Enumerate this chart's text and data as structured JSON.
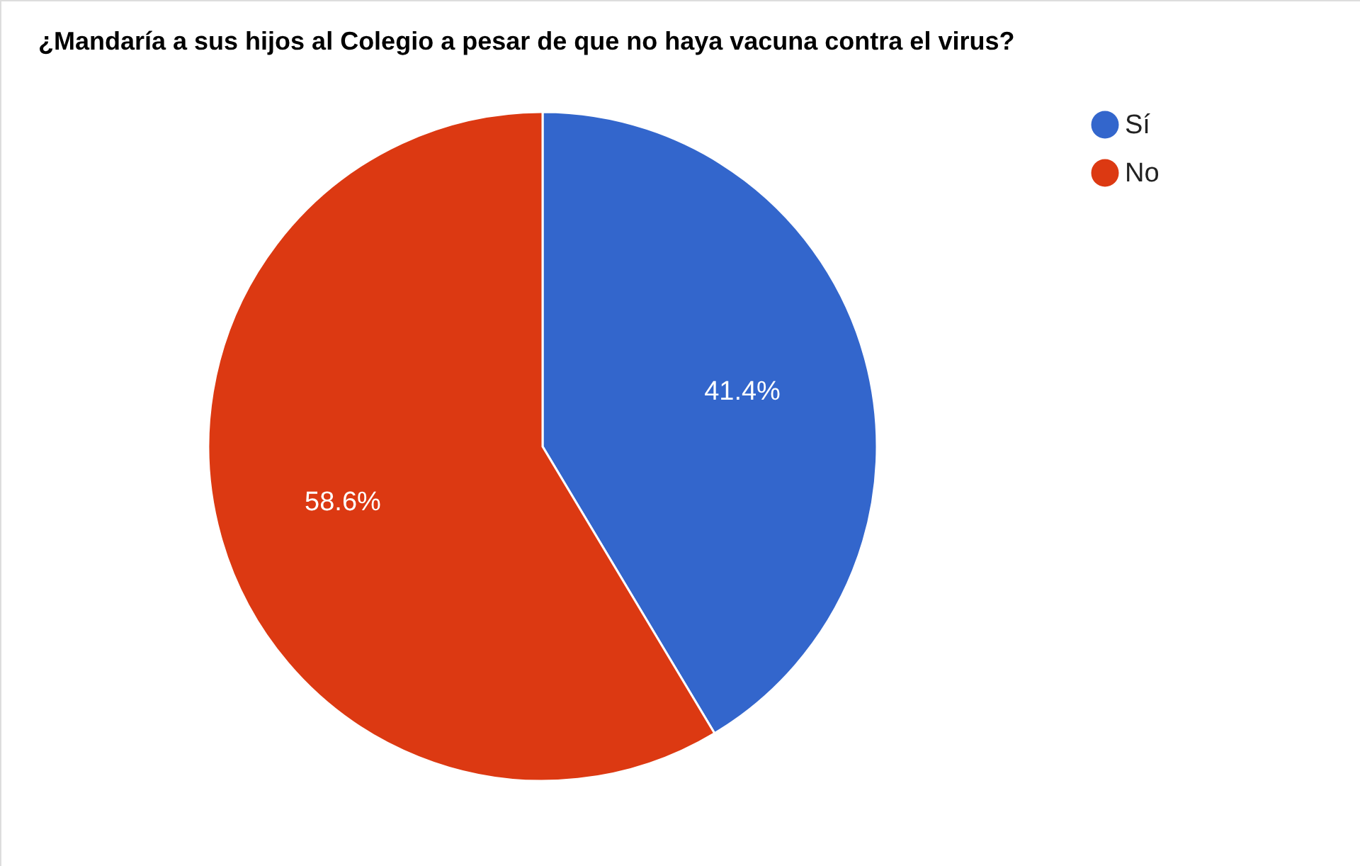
{
  "chart_data": {
    "type": "pie",
    "title": "¿Mandaría a sus hijos al Colegio a pesar de que no haya vacuna contra el virus?",
    "categories": [
      "Sí",
      "No"
    ],
    "values": [
      41.4,
      58.6
    ],
    "colors": [
      "#3366cc",
      "#dc3912"
    ],
    "value_labels": [
      "41.4%",
      "58.6%"
    ],
    "legend": "top right"
  }
}
